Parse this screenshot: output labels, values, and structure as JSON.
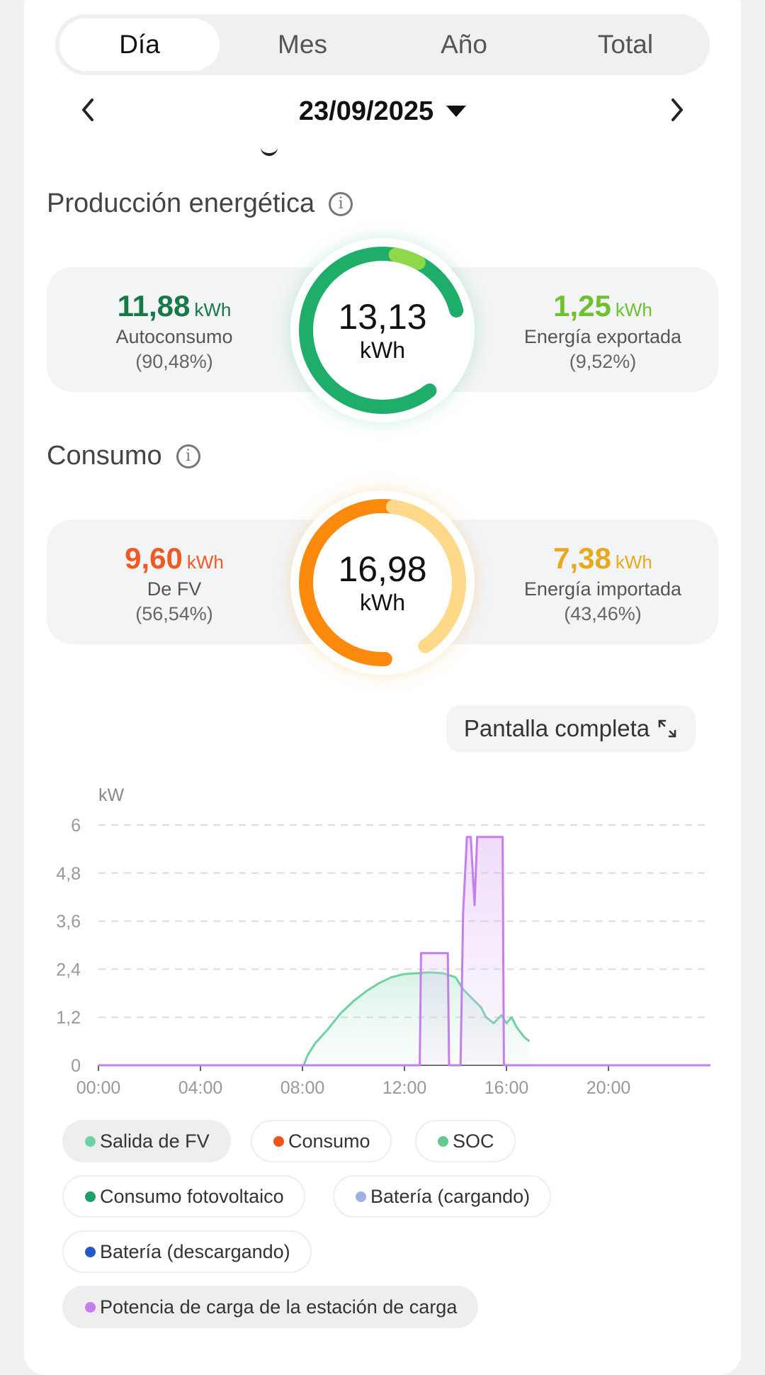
{
  "tabs": [
    {
      "label": "Día",
      "active": true
    },
    {
      "label": "Mes",
      "active": false
    },
    {
      "label": "Año",
      "active": false
    },
    {
      "label": "Total",
      "active": false
    }
  ],
  "date": "23/09/2025",
  "production": {
    "title": "Producción energética",
    "total": "13,13",
    "unit": "kWh",
    "left": {
      "value": "11,88",
      "unit": "kWh",
      "label": "Autoconsumo",
      "pct": "(90,48%)",
      "color": "#157a45"
    },
    "right": {
      "value": "1,25",
      "unit": "kWh",
      "label": "Energía exportada",
      "pct": "(9,52%)",
      "color": "#6ec02e"
    },
    "ring_colors": [
      "#1fae6a",
      "#8ed84a"
    ],
    "share": 0.9048
  },
  "consumption": {
    "title": "Consumo",
    "total": "16,98",
    "unit": "kWh",
    "left": {
      "value": "9,60",
      "unit": "kWh",
      "label": "De FV",
      "pct": "(56,54%)",
      "color": "#ef5a24"
    },
    "right": {
      "value": "7,38",
      "unit": "kWh",
      "label": "Energía importada",
      "pct": "(43,46%)",
      "color": "#e9a91f"
    },
    "ring_colors": [
      "#fb8a0c",
      "#ffd98a"
    ],
    "share": 0.5654
  },
  "fullscreen_label": "Pantalla completa",
  "chart_data": {
    "type": "area",
    "y_unit": "kW",
    "y_ticks": [
      "0",
      "1,2",
      "2,4",
      "3,6",
      "4,8",
      "6"
    ],
    "x_ticks": [
      "00:00",
      "04:00",
      "08:00",
      "12:00",
      "16:00",
      "20:00"
    ],
    "xlim": [
      0,
      24
    ],
    "ylim": [
      0,
      6
    ],
    "grid": true,
    "series": [
      {
        "name": "Salida de FV",
        "color": "#6fd2a0",
        "x": [
          0,
          8.05,
          8.2,
          8.5,
          9,
          9.5,
          10,
          10.5,
          11,
          11.5,
          12,
          12.5,
          13,
          13.5,
          14,
          14.3,
          14.6,
          15,
          15.2,
          15.5,
          15.8,
          16,
          16.2,
          16.4,
          16.7,
          16.9
        ],
        "y": [
          0,
          0,
          0.25,
          0.55,
          0.9,
          1.3,
          1.6,
          1.85,
          2.05,
          2.2,
          2.28,
          2.3,
          2.32,
          2.3,
          2.2,
          1.9,
          1.7,
          1.45,
          1.2,
          1.05,
          1.25,
          1.05,
          1.2,
          0.95,
          0.7,
          0.6
        ]
      },
      {
        "name": "Potencia de carga de la estación de carga",
        "color": "#c47ef0",
        "x": [
          0,
          12.6,
          12.65,
          13.7,
          13.75,
          14.2,
          14.3,
          14.45,
          14.6,
          14.75,
          14.85,
          15.3,
          15.35,
          15.85,
          15.9,
          24
        ],
        "y": [
          0,
          0,
          2.8,
          2.8,
          0,
          0,
          3.8,
          5.7,
          5.7,
          4.0,
          5.7,
          5.7,
          5.7,
          5.7,
          0,
          0
        ]
      }
    ]
  },
  "legend": [
    {
      "label": "Salida de FV",
      "color": "#6fd2a0",
      "selected": true
    },
    {
      "label": "Consumo",
      "color": "#f0521b",
      "selected": false
    },
    {
      "label": "SOC",
      "color": "#65c98f",
      "selected": false
    },
    {
      "label": "Consumo fotovoltaico",
      "color": "#1aa163",
      "selected": false
    },
    {
      "label": "Batería (cargando)",
      "color": "#9fb0e6",
      "selected": false
    },
    {
      "label": "Batería (descargando)",
      "color": "#2457c7",
      "selected": false
    },
    {
      "label": "Potencia de carga de la estación de carga",
      "color": "#c47ef0",
      "selected": true
    }
  ]
}
